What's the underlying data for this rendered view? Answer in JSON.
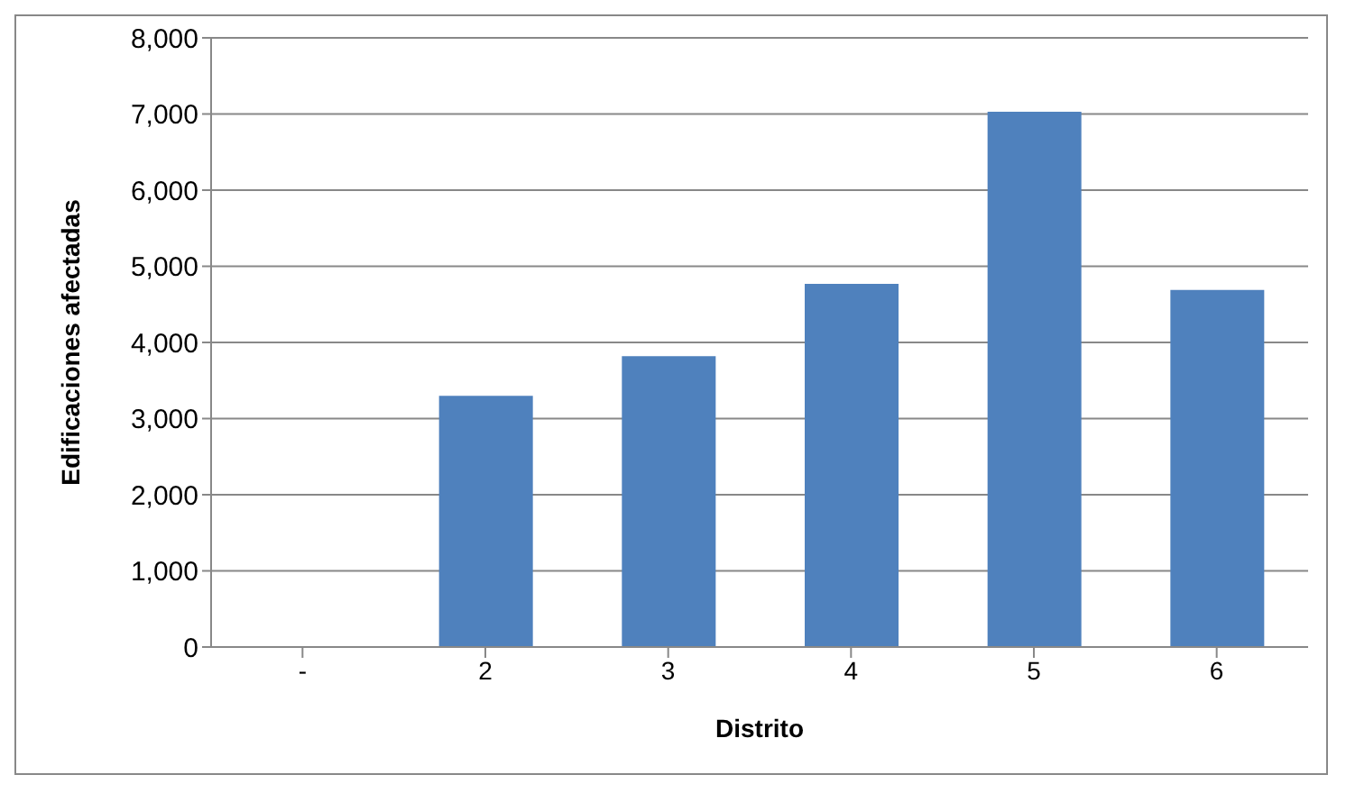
{
  "chart_data": {
    "type": "bar",
    "xlabel": "Distrito",
    "ylabel": "Edificaciones  afectadas",
    "categories": [
      "-",
      "2",
      "3",
      "4",
      "5",
      "6"
    ],
    "values": [
      null,
      3300,
      3820,
      4770,
      7030,
      4690
    ],
    "color": "#4f81bd",
    "ylim": [
      0,
      8000
    ],
    "yticks": [
      {
        "value": 0,
        "label": "0"
      },
      {
        "value": 1000,
        "label": "1,000"
      },
      {
        "value": 2000,
        "label": "2,000"
      },
      {
        "value": 3000,
        "label": "3,000"
      },
      {
        "value": 4000,
        "label": "4,000"
      },
      {
        "value": 5000,
        "label": "5,000"
      },
      {
        "value": 6000,
        "label": "6,000"
      },
      {
        "value": 7000,
        "label": "7,000"
      },
      {
        "value": 8000,
        "label": "8,000"
      }
    ],
    "grid": "y",
    "legend": false
  }
}
